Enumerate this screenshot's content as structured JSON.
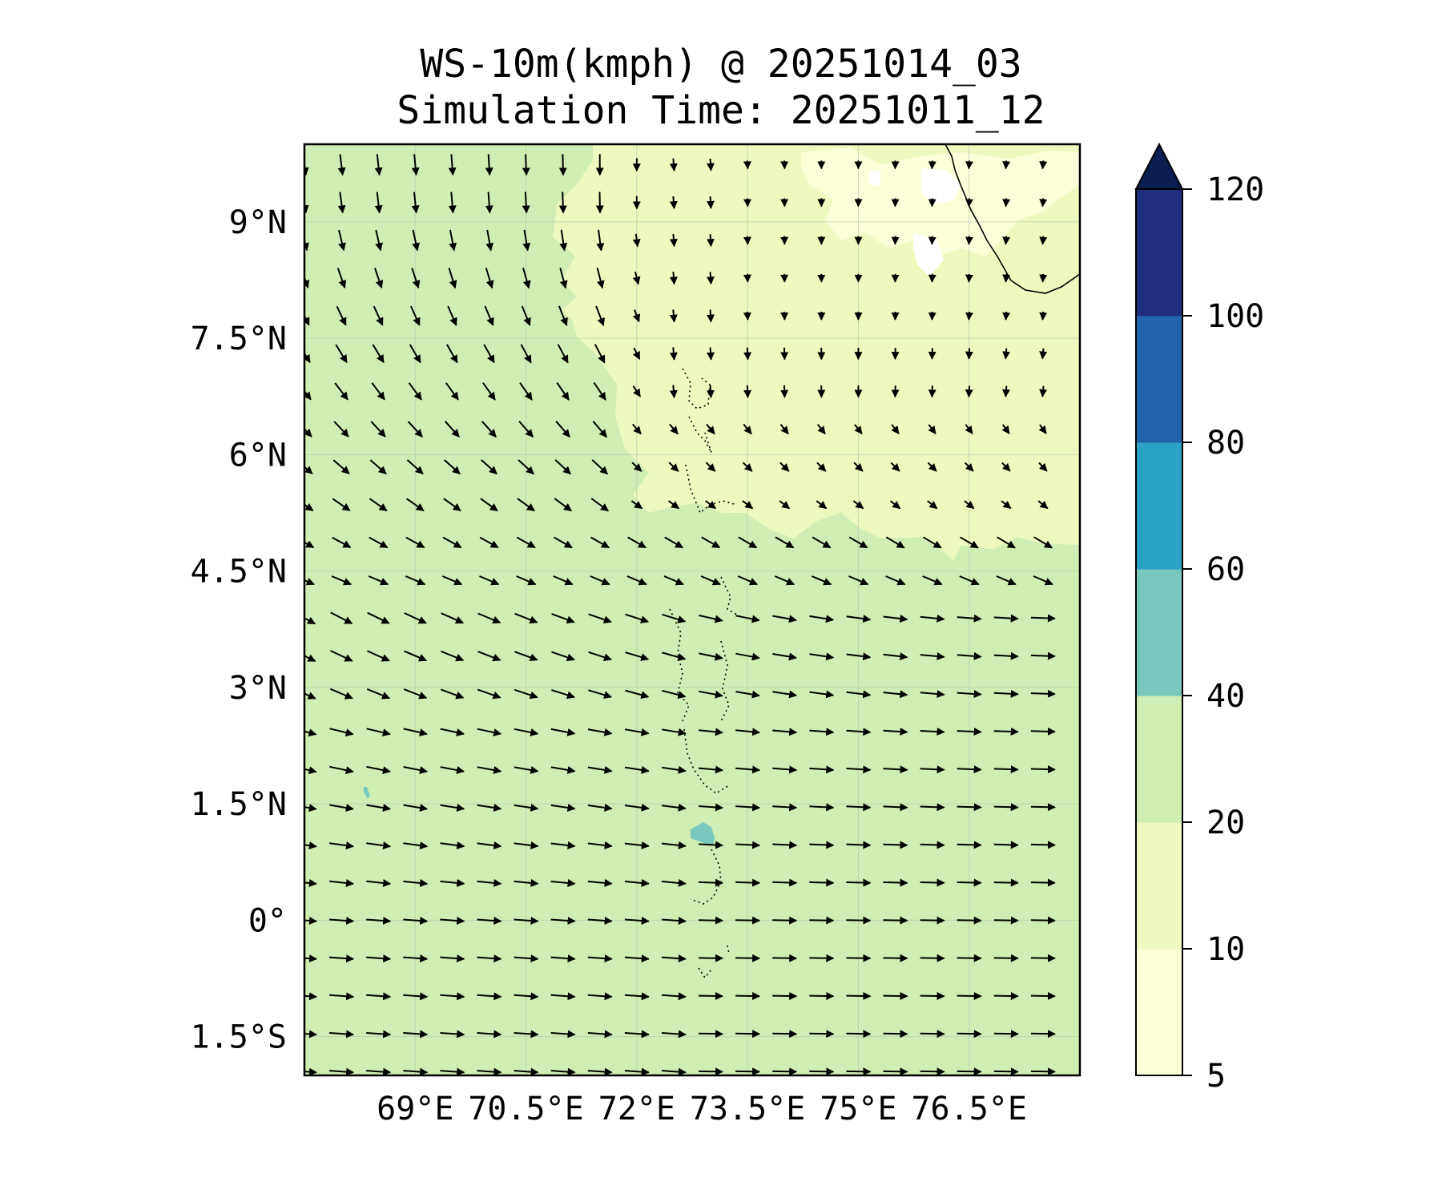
{
  "title": {
    "line1": "WS-10m(kmph) @ 20251014_03",
    "line2": "Simulation Time: 20251011_12"
  },
  "map": {
    "lon_range": [
      67.5,
      78.0
    ],
    "lat_range": [
      -2.0,
      10.0
    ],
    "lon_ticks": [
      {
        "value": 69.0,
        "label": "69°E"
      },
      {
        "value": 70.5,
        "label": "70.5°E"
      },
      {
        "value": 72.0,
        "label": "72°E"
      },
      {
        "value": 73.5,
        "label": "73.5°E"
      },
      {
        "value": 75.0,
        "label": "75°E"
      },
      {
        "value": 76.5,
        "label": "76.5°E"
      }
    ],
    "lat_ticks": [
      {
        "value": 9.0,
        "label": "9°N"
      },
      {
        "value": 7.5,
        "label": "7.5°N"
      },
      {
        "value": 6.0,
        "label": "6°N"
      },
      {
        "value": 4.5,
        "label": "4.5°N"
      },
      {
        "value": 3.0,
        "label": "3°N"
      },
      {
        "value": 1.5,
        "label": "1.5°N"
      },
      {
        "value": 0.0,
        "label": "0°"
      },
      {
        "value": -1.5,
        "label": "1.5°S"
      }
    ],
    "gridlines": true
  },
  "colorbar": {
    "levels": [
      5,
      10,
      20,
      40,
      60,
      80,
      100,
      120
    ],
    "tick_labels": [
      "5",
      "10",
      "20",
      "40",
      "60",
      "80",
      "100",
      "120"
    ],
    "colors": [
      "#fcfed8",
      "#eef9bd",
      "#d0edb4",
      "#78c8bd",
      "#2ca1c6",
      "#2164ab",
      "#1f2e7f"
    ],
    "extend_color": "#0b1d51",
    "extend": "max"
  },
  "field": {
    "background_color": "#d0edb4",
    "light_region_color": "#eef9bd",
    "lightest_region_color": "#fcfed8",
    "highlight_color": "#78c8bd"
  },
  "wind": {
    "arrow_color": "#000000",
    "lon_start": 67.5,
    "lon_step": 0.5,
    "cols": 21,
    "lat_start": -1.95,
    "lat_step": 0.487,
    "rows": 25
  }
}
